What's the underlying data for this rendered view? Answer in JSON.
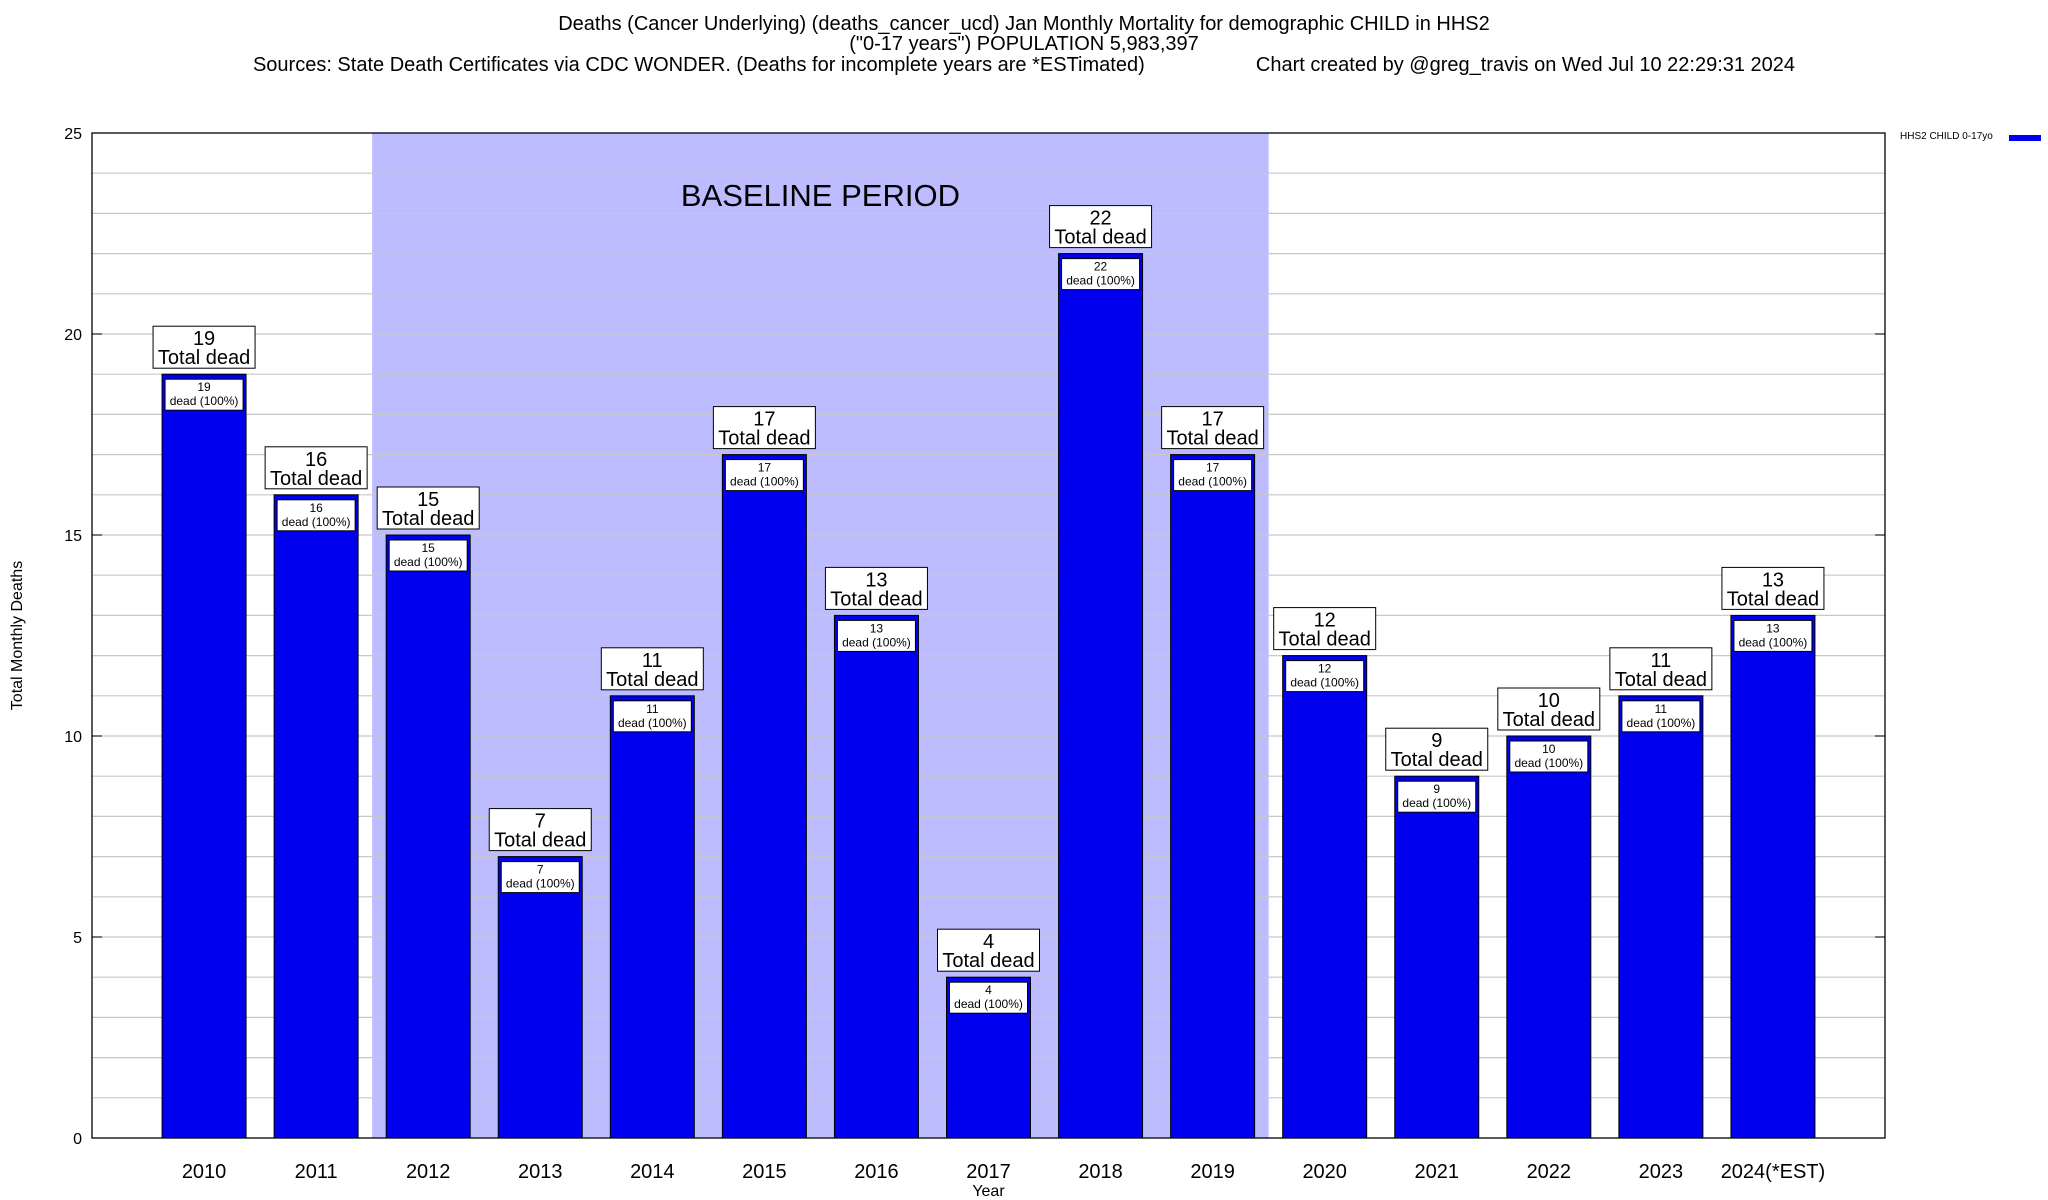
{
  "header": {
    "title_line1": "Deaths (Cancer Underlying) (deaths_cancer_ucd) Jan Monthly Mortality for demographic CHILD in HHS2",
    "title_line2": "(\"0-17 years\") POPULATION 5,983,397",
    "sources": "Sources: State Death Certificates via CDC WONDER. (Deaths for incomplete years are *ESTimated)",
    "credit": "Chart created by @greg_travis on Wed Jul 10 22:29:31 2024"
  },
  "colors": {
    "bar": "#0000ee",
    "baseline_shade": "#bcbcff",
    "grid": "#c8c8c8"
  },
  "chart_data": {
    "type": "bar",
    "title": "Deaths (Cancer Underlying) (deaths_cancer_ucd) Jan Monthly Mortality for demographic CHILD in HHS2",
    "xlabel": "Year",
    "ylabel": "Total Monthly Deaths",
    "ylim": [
      0,
      25
    ],
    "yticks": [
      0,
      5,
      10,
      15,
      20,
      25
    ],
    "grid": true,
    "legend_position": "top-right",
    "categories": [
      "2010",
      "2011",
      "2012",
      "2013",
      "2014",
      "2015",
      "2016",
      "2017",
      "2018",
      "2019",
      "2020",
      "2021",
      "2022",
      "2023",
      "2024(*EST)"
    ],
    "series": [
      {
        "name": "HHS2 CHILD 0-17yo",
        "values": [
          19,
          16,
          15,
          7,
          11,
          17,
          13,
          4,
          22,
          17,
          12,
          9,
          10,
          11,
          13
        ]
      }
    ],
    "total_label_suffix": "Total dead",
    "inner_label_suffix": "dead (100%)",
    "baseline_period": {
      "label": "BASELINE PERIOD",
      "from_category": "2012",
      "to_category": "2019"
    }
  }
}
